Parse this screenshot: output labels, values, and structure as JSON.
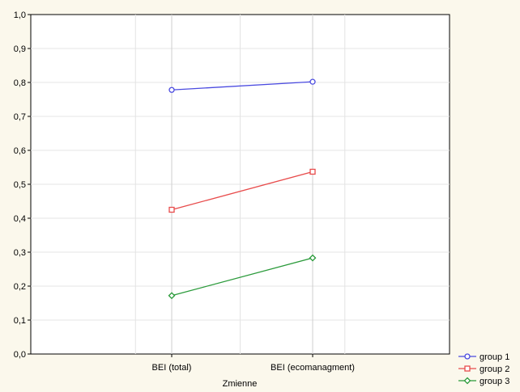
{
  "chart_data": {
    "type": "line",
    "title": "",
    "xlabel": "Zmienne",
    "ylabel": "",
    "categories": [
      "BEI (total)",
      "BEI (ecomanagment)"
    ],
    "ylim": [
      0,
      1
    ],
    "yticks": [
      "0,0",
      "0,1",
      "0,2",
      "0,3",
      "0,4",
      "0,5",
      "0,6",
      "0,7",
      "0,8",
      "0,9",
      "1,0"
    ],
    "grid": true,
    "legend_position": "bottom-right",
    "series": [
      {
        "name": "group 1",
        "color": "#4a4ae0",
        "marker": "circle",
        "values": [
          0.778,
          0.802
        ]
      },
      {
        "name": "group 2",
        "color": "#e84b4b",
        "marker": "square",
        "values": [
          0.425,
          0.537
        ]
      },
      {
        "name": "group 3",
        "color": "#2a9a3a",
        "marker": "diamond",
        "values": [
          0.172,
          0.283
        ]
      }
    ]
  }
}
